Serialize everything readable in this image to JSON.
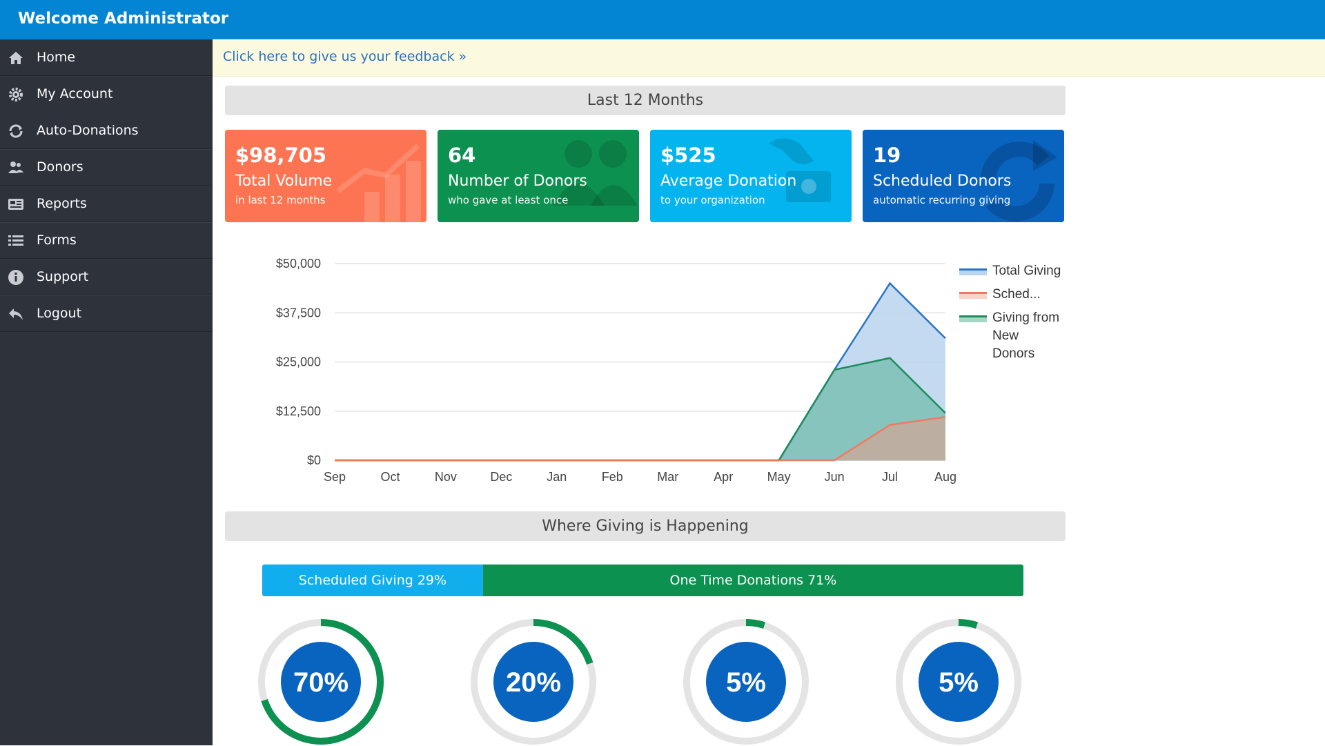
{
  "header": {
    "title": "Welcome Administrator"
  },
  "sidebar": {
    "items": [
      {
        "label": "Home",
        "icon": "home-icon"
      },
      {
        "label": "My Account",
        "icon": "gear-icon"
      },
      {
        "label": "Auto-Donations",
        "icon": "refresh-icon"
      },
      {
        "label": "Donors",
        "icon": "users-icon"
      },
      {
        "label": "Reports",
        "icon": "reports-icon"
      },
      {
        "label": "Forms",
        "icon": "list-icon"
      },
      {
        "label": "Support",
        "icon": "info-icon"
      },
      {
        "label": "Logout",
        "icon": "reply-icon"
      }
    ]
  },
  "feedback": {
    "link_text": "Click here to give us your feedback »"
  },
  "sections": {
    "last12": "Last 12 Months",
    "where": "Where Giving is Happening"
  },
  "cards": [
    {
      "value": "$98,705",
      "label": "Total Volume",
      "sub": "in last 12 months",
      "color": "#fd7452"
    },
    {
      "value": "64",
      "label": "Number of Donors",
      "sub": "who gave at least once",
      "color": "#0d9150"
    },
    {
      "value": "$525",
      "label": "Average Donation",
      "sub": "to your organization",
      "color": "#04b4ee"
    },
    {
      "value": "19",
      "label": "Scheduled Donors",
      "sub": "automatic recurring giving",
      "color": "#0964c0"
    }
  ],
  "chart_data": {
    "type": "area",
    "categories": [
      "Sep",
      "Oct",
      "Nov",
      "Dec",
      "Jan",
      "Feb",
      "Mar",
      "Apr",
      "May",
      "Jun",
      "Jul",
      "Aug"
    ],
    "yticks": [
      "$50,000",
      "$37,500",
      "$25,000",
      "$12,500",
      "$0"
    ],
    "ylim": [
      0,
      50000
    ],
    "grid": true,
    "legend_position": "right",
    "series": [
      {
        "name": "Total Giving",
        "color": "#2b73c4",
        "fill": "#b8d4ef",
        "values": [
          0,
          0,
          0,
          0,
          0,
          0,
          0,
          0,
          0,
          23000,
          45000,
          31000
        ]
      },
      {
        "name": "Sched...",
        "color": "#f07a5f",
        "fill": "#c6ab9c",
        "values": [
          0,
          0,
          0,
          0,
          0,
          0,
          0,
          0,
          0,
          0,
          9000,
          11000
        ]
      },
      {
        "name": "Giving from New Donors",
        "color": "#1f8a5a",
        "fill": "#7cbfb4",
        "values": [
          0,
          0,
          0,
          0,
          0,
          0,
          0,
          0,
          0,
          23000,
          26000,
          12000
        ]
      }
    ]
  },
  "split": {
    "scheduled": {
      "label": "Scheduled Giving 29%",
      "percent": 29,
      "color": "#10aeed"
    },
    "onetime": {
      "label": "One Time Donations 71%",
      "percent": 71,
      "color": "#0d9150"
    }
  },
  "donuts": [
    {
      "label": "70%",
      "percent": 70
    },
    {
      "label": "20%",
      "percent": 20
    },
    {
      "label": "5%",
      "percent": 5
    },
    {
      "label": "5%",
      "percent": 5
    }
  ]
}
